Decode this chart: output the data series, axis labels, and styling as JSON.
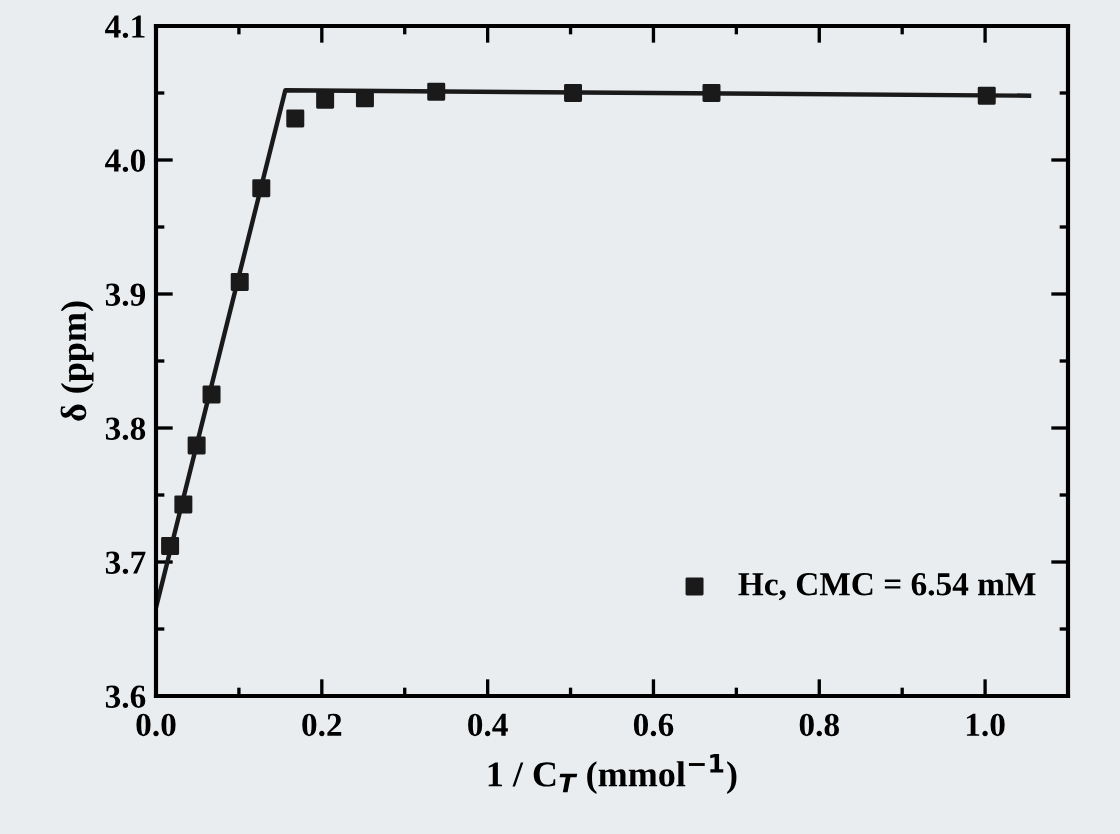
{
  "chart_data": {
    "type": "scatter",
    "xlabel": "1 / C$_{T}$ (mmol$^{−1}$)",
    "ylabel": "δ (ppm)",
    "xlim": [
      0.0,
      1.1
    ],
    "ylim": [
      3.6,
      4.1
    ],
    "xticks": [
      {
        "value": 0.0,
        "label": "0.0"
      },
      {
        "value": 0.1,
        "label": null
      },
      {
        "value": 0.2,
        "label": "0.2"
      },
      {
        "value": 0.3,
        "label": null
      },
      {
        "value": 0.4,
        "label": "0.4"
      },
      {
        "value": 0.5,
        "label": null
      },
      {
        "value": 0.6,
        "label": "0.6"
      },
      {
        "value": 0.7,
        "label": null
      },
      {
        "value": 0.8,
        "label": "0.8"
      },
      {
        "value": 0.9,
        "label": null
      },
      {
        "value": 1.0,
        "label": "1.0"
      }
    ],
    "yticks": [
      3.6,
      {
        "value": 3.65,
        "label": null
      },
      3.7,
      {
        "value": 3.75,
        "label": null
      },
      3.8,
      {
        "value": 3.85,
        "label": null
      },
      3.9,
      {
        "value": 3.95,
        "label": null
      },
      {
        "value": 4.0,
        "label": "4.0"
      },
      {
        "value": 4.05,
        "label": null
      },
      4.1
    ],
    "legend": "bottom right",
    "marker": "square",
    "grid": false,
    "series": [
      {
        "name": "Hc, CMC = 6.54 mM",
        "color": "#1a1a1a",
        "x": [
          0.017,
          0.033,
          0.049,
          0.067,
          0.101,
          0.127,
          0.168,
          0.204,
          0.252,
          0.338,
          0.503,
          0.67,
          1.002
        ],
        "values": [
          3.712,
          3.743,
          3.787,
          3.825,
          3.909,
          3.979,
          4.031,
          4.045,
          4.046,
          4.051,
          4.05,
          4.05,
          4.048
        ]
      },
      {
        "type": "line",
        "color": "#1a1a1a",
        "line_style": "solid",
        "marker": "none",
        "x": [
          0.0,
          0.156,
          1.053
        ],
        "values": [
          3.666,
          4.052,
          4.048
        ]
      }
    ]
  }
}
